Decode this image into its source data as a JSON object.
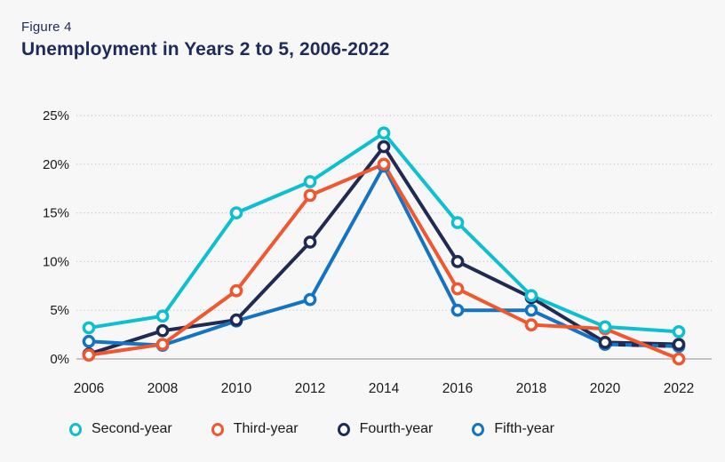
{
  "figure_label": "Figure 4",
  "title": "Unemployment in Years 2 to 5, 2006-2022",
  "colors": {
    "background": "#f7f7f7",
    "heading_text": "#1e2b5a",
    "axis_text": "#1a1a1a",
    "gridline": "#c6c6c6",
    "zero_line": "#b3b3b3",
    "marker_fill": "#ffffff"
  },
  "chart_data": {
    "type": "line",
    "title": "Unemployment in Years 2 to 5, 2006-2022",
    "xlabel": "",
    "ylabel": "",
    "x": [
      "2006",
      "2008",
      "2010",
      "2012",
      "2014",
      "2016",
      "2018",
      "2020",
      "2022"
    ],
    "ylim": [
      0,
      25
    ],
    "yticks": [
      "0%",
      "5%",
      "10%",
      "15%",
      "20%",
      "25%"
    ],
    "grid": "horizontal-dotted",
    "legend_position": "bottom",
    "series": [
      {
        "name": "Second-year",
        "color": "#0dbfd1",
        "values": [
          3.2,
          4.4,
          15,
          18.2,
          23.2,
          14,
          6.5,
          3.3,
          2.8
        ]
      },
      {
        "name": "Third-year",
        "color": "#f1572f",
        "values": [
          0.4,
          1.5,
          7,
          16.8,
          20,
          7.2,
          3.5,
          3.1,
          0
        ]
      },
      {
        "name": "Fourth-year",
        "color": "#202a52",
        "values": [
          0.5,
          2.9,
          4,
          12,
          21.8,
          10,
          6.3,
          1.7,
          1.5
        ]
      },
      {
        "name": "Fifth-year",
        "color": "#1474c4",
        "values": [
          1.8,
          1.4,
          3.9,
          6.1,
          19.8,
          5,
          5,
          1.5,
          1.3
        ]
      }
    ],
    "overlap_dash_segment": {
      "series": "Fourth-year",
      "over": "Fifth-year",
      "from_x": "2020",
      "to_x": "2022"
    }
  }
}
